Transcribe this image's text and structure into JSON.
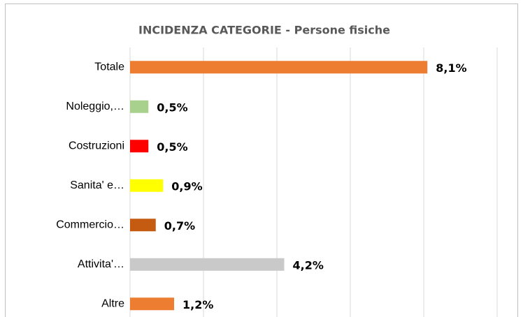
{
  "chart_data": {
    "type": "bar",
    "orientation": "horizontal",
    "title": "INCIDENZA CATEGORIE - Persone fisiche",
    "categories": [
      "Totale",
      "Noleggio,…",
      "Costruzioni",
      "Sanita' e…",
      "Commercio…",
      "Attivita'…",
      "Altre"
    ],
    "values": [
      8.1,
      0.5,
      0.5,
      0.9,
      0.7,
      4.2,
      1.2
    ],
    "value_labels": [
      "8,1%",
      "0,5%",
      "0,5%",
      "0,9%",
      "0,7%",
      "4,2%",
      "1,2%"
    ],
    "colors": [
      "#ed7d31",
      "#a9d18e",
      "#ff0000",
      "#ffff00",
      "#c55a11",
      "#c9c9c9",
      "#ed7d31"
    ],
    "xlim": [
      0,
      10
    ],
    "xticks": [
      0,
      2,
      4,
      6,
      8,
      10
    ],
    "grid": true
  }
}
